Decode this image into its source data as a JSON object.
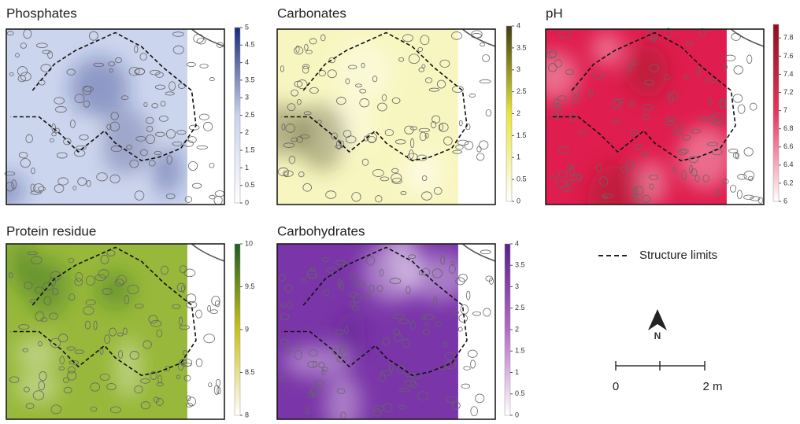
{
  "panels": [
    {
      "title": "Phosphates",
      "lim": [
        0,
        5
      ],
      "ticks": [
        0,
        0.5,
        1,
        1.5,
        2,
        2.5,
        3,
        3.5,
        4,
        4.5,
        5
      ],
      "colors": [
        "#ffffff",
        "#c9d3ec",
        "#1a2a7a"
      ],
      "fill": "#ccd5ee"
    },
    {
      "title": "Carbonates",
      "lim": [
        0,
        4
      ],
      "ticks": [
        0,
        0.5,
        1,
        1.5,
        2,
        2.5,
        3,
        3.5,
        4
      ],
      "colors": [
        "#ffffff",
        "#e8e63a",
        "#3f3e10"
      ],
      "fill": "#f8f6c0"
    },
    {
      "title": "pH",
      "lim": [
        6,
        7.95
      ],
      "ticks": [
        6,
        6.2,
        6.4,
        6.6,
        6.8,
        7,
        7.2,
        7.4,
        7.6,
        7.8
      ],
      "colors": [
        "#ffffff",
        "#e8355f",
        "#8b1020"
      ],
      "fill": "#df1d4e"
    },
    {
      "title": "Protein residue",
      "lim": [
        8,
        10
      ],
      "ticks": [
        8,
        8.5,
        9,
        9.5,
        10
      ],
      "colors": [
        "#ffffff",
        "#c8c21c",
        "#1d5e22"
      ],
      "fill": "#97b83a"
    },
    {
      "title": "Carbohydrates",
      "lim": [
        0,
        4
      ],
      "ticks": [
        0,
        0.5,
        1,
        1.5,
        2,
        2.5,
        3,
        3.5,
        4
      ],
      "colors": [
        "#ffffff",
        "#b36ac6",
        "#5b1e8c"
      ],
      "fill": "#7a35a8"
    }
  ],
  "legend": {
    "label": "Structure limits"
  },
  "north": "N",
  "scale": {
    "start": "0",
    "end": "2 m"
  }
}
